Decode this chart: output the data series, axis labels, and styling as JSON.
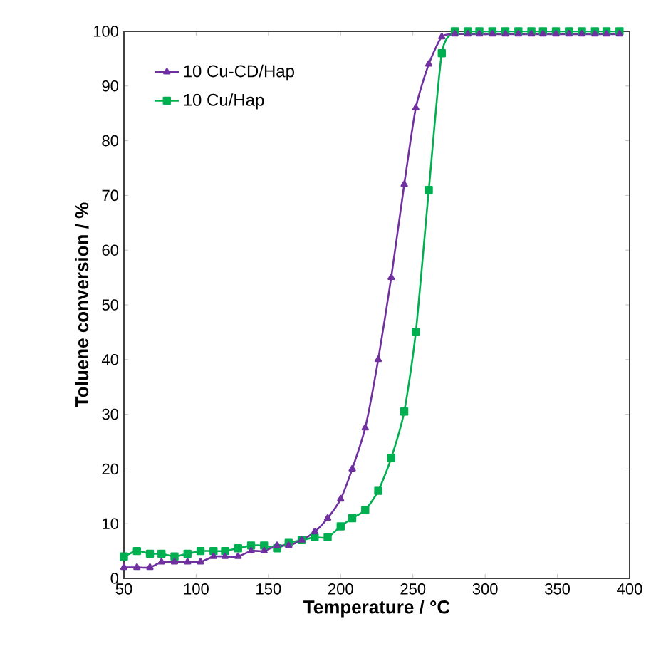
{
  "chart_data": {
    "type": "line",
    "xlabel": "Temperature / °C",
    "ylabel": "Toluene conversion / %",
    "xlim": [
      50,
      400
    ],
    "ylim": [
      0,
      100
    ],
    "xticks": [
      50,
      100,
      150,
      200,
      250,
      300,
      350,
      400
    ],
    "yticks": [
      0,
      10,
      20,
      30,
      40,
      50,
      60,
      70,
      80,
      90,
      100
    ],
    "grid": false,
    "legend": "top left",
    "x": [
      50,
      59,
      68,
      76,
      85,
      94,
      103,
      112,
      120,
      129,
      138,
      147,
      156,
      164,
      173,
      182,
      191,
      200,
      208,
      217,
      226,
      235,
      244,
      252,
      261,
      270,
      279,
      288,
      296,
      305,
      314,
      323,
      332,
      340,
      349,
      358,
      367,
      376,
      384,
      393
    ],
    "series": [
      {
        "name": "10 Cu-CD/Hap",
        "color": "#7030a0",
        "marker": "triangle",
        "values": [
          2,
          2,
          2,
          3,
          3,
          3,
          3,
          4,
          4,
          4,
          5,
          5,
          6,
          6,
          7,
          8.5,
          11,
          14.5,
          20,
          27.5,
          40,
          55,
          72,
          86,
          94,
          99,
          99.5,
          99.5,
          99.5,
          99.5,
          99.5,
          99.5,
          99.5,
          99.5,
          99.5,
          99.5,
          99.5,
          99.5,
          99.5,
          99.5
        ]
      },
      {
        "name": "10 Cu/Hap",
        "color": "#00b050",
        "marker": "square",
        "values": [
          4,
          5,
          4.5,
          4.5,
          4,
          4.5,
          5,
          5,
          5,
          5.5,
          6,
          6,
          5.5,
          6.5,
          7,
          7.5,
          7.5,
          9.5,
          11,
          12.5,
          16,
          22,
          30.5,
          45,
          71,
          96,
          100,
          100,
          100,
          100,
          100,
          100,
          100,
          100,
          100,
          100,
          100,
          100,
          100,
          100
        ]
      }
    ]
  }
}
